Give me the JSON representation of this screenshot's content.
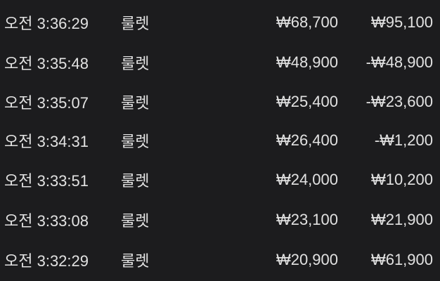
{
  "colors": {
    "background": "#1c1c1e",
    "text": "#e2e2e2"
  },
  "rows": [
    {
      "time": "오전 3:36:29",
      "game": "룰렛",
      "amount": "₩68,700",
      "balance": "₩95,100"
    },
    {
      "time": "오전 3:35:48",
      "game": "룰렛",
      "amount": "₩48,900",
      "balance": "-₩48,900"
    },
    {
      "time": "오전 3:35:07",
      "game": "룰렛",
      "amount": "₩25,400",
      "balance": "-₩23,600"
    },
    {
      "time": "오전 3:34:31",
      "game": "룰렛",
      "amount": "₩26,400",
      "balance": "-₩1,200"
    },
    {
      "time": "오전 3:33:51",
      "game": "룰렛",
      "amount": "₩24,000",
      "balance": "₩10,200"
    },
    {
      "time": "오전 3:33:08",
      "game": "룰렛",
      "amount": "₩23,100",
      "balance": "₩21,900"
    },
    {
      "time": "오전 3:32:29",
      "game": "룰렛",
      "amount": "₩20,900",
      "balance": "₩61,900"
    }
  ]
}
